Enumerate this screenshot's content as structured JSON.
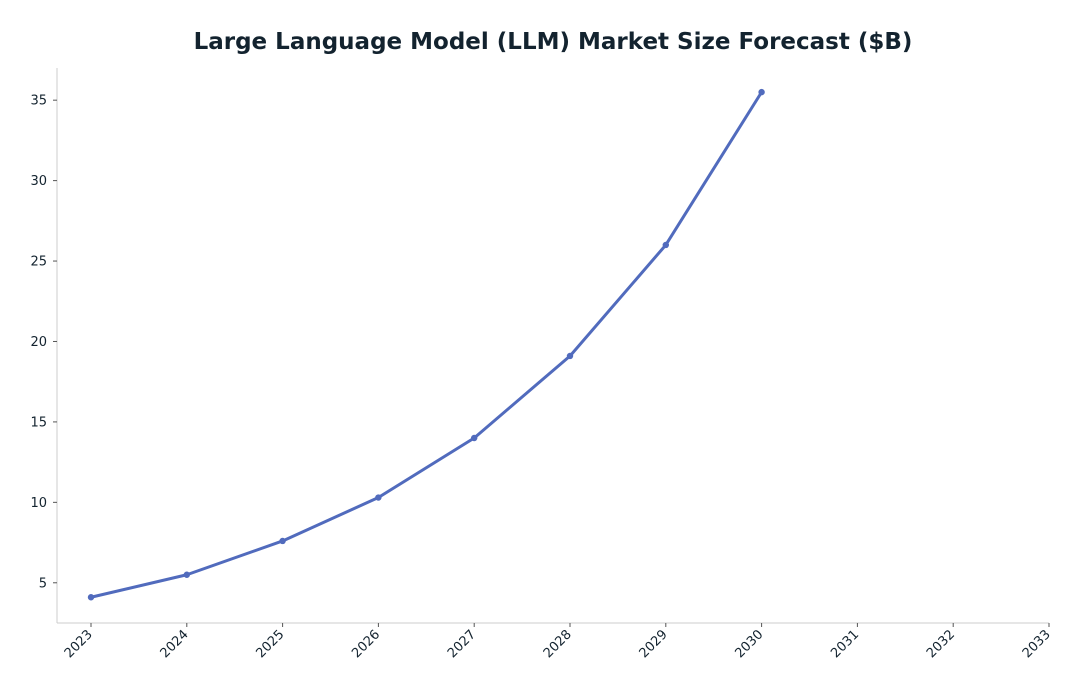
{
  "chart_data": {
    "type": "line",
    "title": "Large Language Model (LLM) Market Size Forecast ($B)",
    "xlabel": "",
    "ylabel": "",
    "x_ticks": [
      "2023",
      "2024",
      "2025",
      "2026",
      "2027",
      "2028",
      "2029",
      "2030",
      "2031",
      "2032",
      "2033"
    ],
    "y_ticks": [
      5,
      10,
      15,
      20,
      25,
      30,
      35
    ],
    "xlim": [
      2023,
      2033
    ],
    "ylim": [
      2.5,
      37
    ],
    "grid": false,
    "legend": "none",
    "series": [
      {
        "color": "#516bbd",
        "x": [
          2023,
          2024,
          2025,
          2026,
          2027,
          2028,
          2029,
          2030
        ],
        "values": [
          4.1,
          5.5,
          7.6,
          10.3,
          14.0,
          19.1,
          26.0,
          35.5
        ]
      }
    ]
  }
}
